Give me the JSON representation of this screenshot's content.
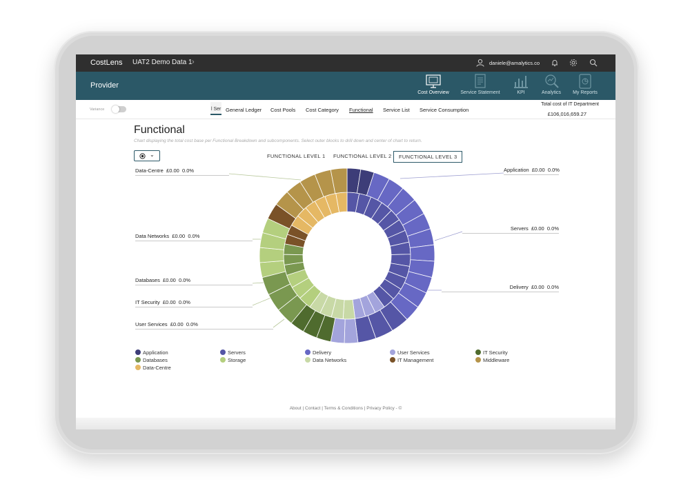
{
  "app": {
    "brand": "CostLens",
    "dataset": "UAT2 Demo Data 1"
  },
  "user": {
    "email": "daniele@amalytics.co"
  },
  "provider": {
    "title": "Provider",
    "nav": [
      {
        "label": "Cost Overview",
        "icon": "monitor-icon"
      },
      {
        "label": "Service Statement",
        "icon": "document-icon"
      },
      {
        "label": "KPI",
        "icon": "bar-chart-icon"
      },
      {
        "label": "Analytics",
        "icon": "magnifier-chart-icon"
      },
      {
        "label": "My Reports",
        "icon": "report-icon"
      }
    ]
  },
  "tabs": {
    "variance": "Variance",
    "cut_tab": "l Ser",
    "items": [
      "General Ledger",
      "Cost Pools",
      "Cost Category",
      "Functional",
      "Service List",
      "Service Consumption"
    ],
    "total_label": "Total cost of IT Department",
    "total_value": "£106,016,659.27"
  },
  "page": {
    "title": "Functional",
    "description": "Chart displaying the total cost base per Functional Breakdown and subcomponents. Select outer blocks to drill down and center of chart to return.",
    "levels": [
      "FUNCTIONAL LEVEL 1",
      "FUNCTIONAL LEVEL 2",
      "FUNCTIONAL LEVEL 3"
    ]
  },
  "colors": {
    "Application": "#3d3d78",
    "Servers": "#5556a6",
    "Delivery": "#6768c4",
    "User Services": "#a3a4dc",
    "IT Security": "#4f6b2e",
    "Databases": "#7a9850",
    "Storage": "#b4cf7e",
    "Data Networks": "#c8d9a6",
    "IT Management": "#7a5228",
    "Middleware": "#b5944a",
    "Data-Centre": "#e5b864"
  },
  "callouts": [
    {
      "name": "Data-Centre",
      "value": "£0.00",
      "pct": "0.0%"
    },
    {
      "name": "Data Networks",
      "value": "£0.00",
      "pct": "0.0%"
    },
    {
      "name": "Databases",
      "value": "£0.00",
      "pct": "0.0%"
    },
    {
      "name": "IT Security",
      "value": "£0.00",
      "pct": "0.0%"
    },
    {
      "name": "User Services",
      "value": "£0.00",
      "pct": "0.0%"
    },
    {
      "name": "Application",
      "value": "£0.00",
      "pct": "0.0%"
    },
    {
      "name": "Servers",
      "value": "£0.00",
      "pct": "0.0%"
    },
    {
      "name": "Delivery",
      "value": "£0.00",
      "pct": "0.0%"
    }
  ],
  "legend": [
    "Application",
    "Servers",
    "Delivery",
    "User Services",
    "IT Security",
    "Databases",
    "Storage",
    "Data Networks",
    "IT Management",
    "Middleware",
    "Data-Centre"
  ],
  "footer": {
    "text": "About  |  Contact  |  Terms & Conditions  |  Privacy Policy - ©"
  },
  "sunburst": {
    "inner": [
      {
        "name": "Servers",
        "pct": 40
      },
      {
        "name": "User Services",
        "pct": 8
      },
      {
        "name": "Data Networks",
        "pct": 12
      },
      {
        "name": "Storage",
        "pct": 10
      },
      {
        "name": "Databases",
        "pct": 8
      },
      {
        "name": "IT Management",
        "pct": 5
      },
      {
        "name": "Data-Centre",
        "pct": 17
      }
    ],
    "outer": [
      {
        "name": "Application",
        "pct": 5
      },
      {
        "name": "Delivery",
        "pct": 33
      },
      {
        "name": "Servers",
        "pct": 10
      },
      {
        "name": "User Services",
        "pct": 5
      },
      {
        "name": "IT Security",
        "pct": 8
      },
      {
        "name": "Databases",
        "pct": 10
      },
      {
        "name": "Storage",
        "pct": 11
      },
      {
        "name": "IT Management",
        "pct": 3
      },
      {
        "name": "Middleware",
        "pct": 15
      }
    ]
  }
}
